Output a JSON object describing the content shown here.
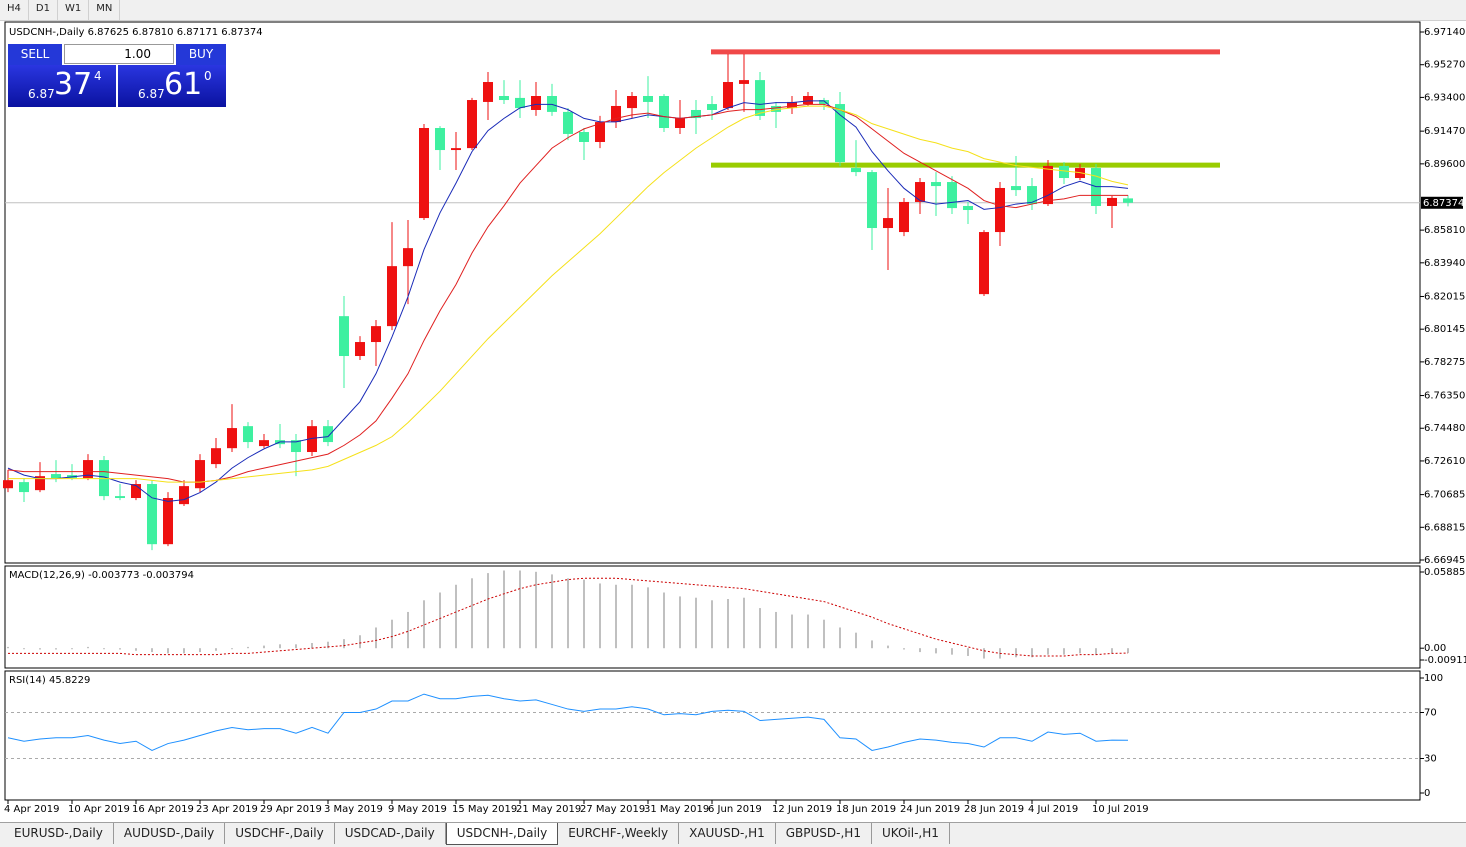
{
  "toolbar": {
    "timeframes": [
      "H4",
      "D1",
      "W1",
      "MN"
    ]
  },
  "trade_panel": {
    "sell": "SELL",
    "buy": "BUY",
    "lot": "1.00",
    "bid": {
      "big": "6.87",
      "pips": "37",
      "frac": "4"
    },
    "ask": {
      "big": "6.87",
      "pips": "61",
      "frac": "0"
    }
  },
  "chart_data": [
    {
      "type": "candlestick",
      "title": "USDCNH-,Daily",
      "header": "6.87625 6.87810 6.87171 6.87374",
      "categories": [
        "4 Apr 2019",
        null,
        null,
        null,
        "10 Apr 2019",
        null,
        null,
        null,
        "16 Apr 2019",
        null,
        null,
        null,
        "23 Apr 2019",
        null,
        null,
        null,
        "29 Apr 2019",
        null,
        null,
        null,
        "3 May 2019",
        null,
        null,
        null,
        "9 May 2019",
        null,
        null,
        null,
        "15 May 2019",
        null,
        null,
        null,
        "21 May 2019",
        null,
        null,
        null,
        "27 May 2019",
        null,
        null,
        null,
        "31 May 2019",
        null,
        null,
        null,
        "6 Jun 2019",
        null,
        null,
        null,
        "12 Jun 2019",
        null,
        null,
        null,
        "18 Jun 2019",
        null,
        null,
        null,
        "24 Jun 2019",
        null,
        null,
        null,
        "28 Jun 2019",
        null,
        null,
        null,
        "4 Jul 2019",
        null,
        null,
        null,
        "10 Jul 2019",
        null,
        null
      ],
      "open": [
        6.7105,
        6.714,
        6.7094,
        6.7186,
        6.718,
        6.7163,
        6.7266,
        6.706,
        6.7049,
        6.7129,
        6.6785,
        6.7014,
        6.7105,
        6.7243,
        6.7334,
        6.746,
        6.7346,
        6.738,
        6.738,
        6.7312,
        6.746,
        6.8089,
        6.7861,
        6.7941,
        6.8032,
        6.8375,
        6.865,
        6.9165,
        6.9039,
        6.905,
        6.9314,
        6.9348,
        6.9337,
        6.9268,
        6.9348,
        6.9257,
        6.9142,
        6.9085,
        6.9199,
        6.9279,
        6.9348,
        6.9348,
        6.9165,
        6.9268,
        6.9302,
        6.9279,
        6.9417,
        6.9439,
        6.9291,
        6.9279,
        6.9302,
        6.9325,
        6.9302,
        6.8936,
        6.8913,
        6.8593,
        6.857,
        6.8742,
        6.8856,
        6.8856,
        6.8719,
        6.8215,
        6.857,
        6.8833,
        6.8833,
        6.873,
        6.8948,
        6.8879,
        6.8936,
        6.8719,
        6.87625
      ],
      "high": [
        6.7209,
        6.7163,
        6.7254,
        6.7266,
        6.7243,
        6.73,
        6.7289,
        6.7129,
        6.7151,
        6.7151,
        6.7083,
        6.7151,
        6.73,
        6.7392,
        6.7586,
        6.7483,
        6.7415,
        6.7472,
        6.7415,
        6.7495,
        6.7495,
        6.8204,
        6.7975,
        6.8067,
        6.8627,
        6.8639,
        6.9188,
        6.9176,
        6.9142,
        6.9337,
        6.9485,
        6.9439,
        6.9439,
        6.9428,
        6.9417,
        6.9279,
        6.9165,
        6.9234,
        6.9382,
        6.9371,
        6.9462,
        6.9359,
        6.9325,
        6.9325,
        6.9348,
        6.9588,
        6.9588,
        6.9485,
        6.9314,
        6.9348,
        6.9371,
        6.9337,
        6.9371,
        6.9096,
        6.8925,
        6.8822,
        6.8765,
        6.8879,
        6.8913,
        6.889,
        6.8742,
        6.8581,
        6.8856,
        6.9005,
        6.8879,
        6.8982,
        6.897,
        6.8959,
        6.8959,
        6.8776,
        6.8781
      ],
      "low": [
        6.7083,
        6.7026,
        6.7083,
        6.714,
        6.7151,
        6.7151,
        6.7037,
        6.7037,
        6.7037,
        6.6751,
        6.6774,
        6.7003,
        6.7083,
        6.722,
        6.7312,
        6.7334,
        6.7334,
        6.7334,
        6.7174,
        6.7289,
        6.7346,
        6.7678,
        6.7838,
        6.7804,
        6.8009,
        6.8158,
        6.8639,
        6.8925,
        6.8925,
        6.9039,
        6.9211,
        6.9302,
        6.9222,
        6.9234,
        6.9234,
        6.9096,
        6.8982,
        6.905,
        6.9165,
        6.9222,
        6.9222,
        6.9142,
        6.9131,
        6.9131,
        6.9211,
        6.9268,
        6.9257,
        6.9211,
        6.9165,
        6.9245,
        6.9291,
        6.9268,
        6.8947,
        6.889,
        6.8467,
        6.8353,
        6.8547,
        6.8673,
        6.8662,
        6.8673,
        6.8616,
        6.8204,
        6.849,
        6.8776,
        6.8696,
        6.8719,
        6.8845,
        6.8867,
        6.8673,
        6.8593,
        6.87171
      ],
      "close": [
        6.7151,
        6.7083,
        6.7174,
        6.7163,
        6.7163,
        6.7266,
        6.706,
        6.7049,
        6.7129,
        6.6785,
        6.7049,
        6.7117,
        6.7266,
        6.7334,
        6.7449,
        6.7369,
        6.738,
        6.7357,
        6.7312,
        6.746,
        6.7369,
        6.7861,
        6.7941,
        6.8032,
        6.8375,
        6.8478,
        6.9165,
        6.9039,
        6.905,
        6.9325,
        6.9428,
        6.9325,
        6.9279,
        6.9348,
        6.9257,
        6.9131,
        6.9085,
        6.9199,
        6.9291,
        6.9348,
        6.9314,
        6.9165,
        6.9222,
        6.9222,
        6.9268,
        6.9428,
        6.9439,
        6.9234,
        6.9257,
        6.9314,
        6.9348,
        6.9302,
        6.897,
        6.8913,
        6.8593,
        6.865,
        6.8742,
        6.8856,
        6.8833,
        6.8707,
        6.8696,
        6.857,
        6.8822,
        6.881,
        6.873,
        6.8948,
        6.8879,
        6.8936,
        6.8719,
        6.8765,
        6.87374
      ],
      "up_color": "#ee1111",
      "down_color": "#3ef0a0",
      "lines": [
        {
          "color": "#1a2bb8",
          "values": [
            6.722,
            6.718,
            6.716,
            6.716,
            6.717,
            6.718,
            6.717,
            6.714,
            6.712,
            6.705,
            6.703,
            6.704,
            6.708,
            6.714,
            6.722,
            6.728,
            6.733,
            6.737,
            6.737,
            6.739,
            6.74,
            6.75,
            6.76,
            6.776,
            6.797,
            6.82,
            6.847,
            6.868,
            6.885,
            6.903,
            6.915,
            6.922,
            6.928,
            6.93,
            6.93,
            6.927,
            6.922,
            6.92,
            6.92,
            6.922,
            6.924,
            6.923,
            6.922,
            6.923,
            6.924,
            6.928,
            6.931,
            6.93,
            6.931,
            6.931,
            6.932,
            6.932,
            6.924,
            6.917,
            6.903,
            6.892,
            6.882,
            6.875,
            6.873,
            6.874,
            6.875,
            6.87,
            6.871,
            6.873,
            6.874,
            6.878,
            6.883,
            6.886,
            6.883,
            6.883,
            6.882
          ]
        },
        {
          "color": "#e02020",
          "values": [
            6.721,
            6.72,
            6.72,
            6.72,
            6.72,
            6.72,
            6.72,
            6.719,
            6.718,
            6.717,
            6.716,
            6.714,
            6.714,
            6.715,
            6.717,
            6.72,
            6.722,
            6.724,
            6.726,
            6.728,
            6.73,
            6.735,
            6.741,
            6.749,
            6.762,
            6.776,
            6.795,
            6.812,
            6.827,
            6.845,
            6.86,
            6.872,
            6.885,
            6.895,
            6.905,
            6.911,
            6.916,
            6.919,
            6.922,
            6.924,
            6.925,
            6.923,
            6.922,
            6.923,
            6.924,
            6.926,
            6.927,
            6.927,
            6.928,
            6.929,
            6.93,
            6.93,
            6.927,
            6.923,
            6.916,
            6.909,
            6.902,
            6.897,
            6.892,
            6.887,
            6.882,
            6.875,
            6.872,
            6.871,
            6.873,
            6.875,
            6.876,
            6.878,
            6.878,
            6.878,
            6.878
          ]
        },
        {
          "color": "#f5e11a",
          "values": [
            6.716,
            6.716,
            6.716,
            6.716,
            6.716,
            6.716,
            6.716,
            6.716,
            6.716,
            6.715,
            6.714,
            6.714,
            6.714,
            6.715,
            6.716,
            6.717,
            6.718,
            6.719,
            6.72,
            6.721,
            6.723,
            6.727,
            6.731,
            6.735,
            6.74,
            6.748,
            6.757,
            6.766,
            6.776,
            6.786,
            6.796,
            6.805,
            6.814,
            6.823,
            6.832,
            6.84,
            6.848,
            6.856,
            6.865,
            6.874,
            6.883,
            6.891,
            6.898,
            6.905,
            6.911,
            6.917,
            6.922,
            6.925,
            6.927,
            6.928,
            6.929,
            6.929,
            6.927,
            6.924,
            6.919,
            6.916,
            6.913,
            6.91,
            6.908,
            6.905,
            6.903,
            6.899,
            6.897,
            6.895,
            6.894,
            6.893,
            6.892,
            6.891,
            6.889,
            6.886,
            6.884
          ]
        }
      ],
      "levels": [
        {
          "value": 6.96,
          "color": "#f04848"
        },
        {
          "value": 6.8953,
          "color": "#99cc00"
        }
      ],
      "last_price": 6.87374,
      "ylim": [
        6.66945,
        6.9714
      ],
      "yticks": [
        {
          "value": 6.9714,
          "label": "6.97140"
        },
        {
          "value": 6.9527,
          "label": "6.95270"
        },
        {
          "value": 6.934,
          "label": "6.93400"
        },
        {
          "value": 6.9147,
          "label": "6.91470"
        },
        {
          "value": 6.896,
          "label": "6.89600"
        },
        {
          "value": 6.8581,
          "label": "6.85810"
        },
        {
          "value": 6.8394,
          "label": "6.83940"
        },
        {
          "value": 6.82015,
          "label": "6.82015"
        },
        {
          "value": 6.80145,
          "label": "6.80145"
        },
        {
          "value": 6.78275,
          "label": "6.78275"
        },
        {
          "value": 6.7635,
          "label": "6.76350"
        },
        {
          "value": 6.7448,
          "label": "6.74480"
        },
        {
          "value": 6.7261,
          "label": "6.72610"
        },
        {
          "value": 6.70685,
          "label": "6.70685"
        },
        {
          "value": 6.68815,
          "label": "6.68815"
        },
        {
          "value": 6.66945,
          "label": "6.66945"
        }
      ]
    },
    {
      "type": "macd",
      "title": "MACD(12,26,9) -0.003773 -0.003794",
      "values": [
        0.001,
        0.0,
        -0.001,
        -0.001,
        0.0,
        0.001,
        0.0,
        -0.001,
        -0.002,
        -0.003,
        -0.004,
        -0.004,
        -0.003,
        -0.002,
        0.0,
        0.001,
        0.002,
        0.003,
        0.003,
        0.004,
        0.005,
        0.007,
        0.01,
        0.016,
        0.022,
        0.028,
        0.037,
        0.043,
        0.049,
        0.054,
        0.058,
        0.06,
        0.06,
        0.059,
        0.057,
        0.054,
        0.053,
        0.05,
        0.049,
        0.049,
        0.047,
        0.043,
        0.04,
        0.039,
        0.037,
        0.038,
        0.039,
        0.031,
        0.028,
        0.026,
        0.026,
        0.022,
        0.016,
        0.012,
        0.006,
        0.002,
        -0.001,
        -0.003,
        -0.004,
        -0.005,
        -0.006,
        -0.008,
        -0.008,
        -0.007,
        -0.007,
        -0.005,
        -0.005,
        -0.004,
        -0.005,
        -0.004,
        -0.003773
      ],
      "signal": [
        -0.004,
        -0.004,
        -0.004,
        -0.004,
        -0.004,
        -0.004,
        -0.004,
        -0.004,
        -0.005,
        -0.005,
        -0.005,
        -0.005,
        -0.005,
        -0.005,
        -0.004,
        -0.004,
        -0.003,
        -0.002,
        -0.001,
        0.0,
        0.001,
        0.002,
        0.004,
        0.006,
        0.009,
        0.013,
        0.018,
        0.023,
        0.028,
        0.033,
        0.038,
        0.042,
        0.046,
        0.049,
        0.051,
        0.053,
        0.054,
        0.054,
        0.054,
        0.053,
        0.052,
        0.051,
        0.05,
        0.049,
        0.048,
        0.047,
        0.046,
        0.044,
        0.042,
        0.04,
        0.038,
        0.036,
        0.032,
        0.028,
        0.024,
        0.019,
        0.015,
        0.011,
        0.007,
        0.004,
        0.001,
        -0.002,
        -0.004,
        -0.005,
        -0.006,
        -0.006,
        -0.006,
        -0.005,
        -0.005,
        -0.004,
        -0.003794
      ],
      "color": "#c0c0c0",
      "signal_color": "#cc0000",
      "ylim": [
        -0.009116,
        0.058851
      ],
      "yticks": [
        0.058851,
        {
          "value": 0,
          "label": "0.00"
        },
        -0.009116
      ]
    },
    {
      "type": "line",
      "title": "RSI(14) 45.8229",
      "values": [
        48,
        45,
        47,
        48,
        48,
        50,
        46,
        43,
        45,
        37,
        43,
        46,
        50,
        54,
        57,
        55,
        56,
        56,
        52,
        57,
        52,
        70,
        70,
        73,
        80,
        80,
        86,
        82,
        82,
        84,
        85,
        82,
        80,
        81,
        77,
        73,
        71,
        73,
        73,
        75,
        73,
        68,
        69,
        68,
        71,
        72,
        71,
        63,
        64,
        65,
        66,
        64,
        48,
        47,
        37,
        40,
        44,
        47,
        46,
        44,
        43,
        40,
        48,
        48,
        45,
        53,
        51,
        52,
        45,
        46,
        45.8229
      ],
      "color": "#1e90ff",
      "ylim": [
        0,
        100
      ],
      "yticks": [
        100,
        70,
        30,
        0
      ],
      "levels": [
        70,
        30
      ]
    }
  ],
  "tabs": [
    "EURUSD-,Daily",
    "AUDUSD-,Daily",
    "USDCHF-,Daily",
    "USDCAD-,Daily",
    "USDCNH-,Daily",
    "EURCHF-,Weekly",
    "XAUUSD-,H1",
    "GBPUSD-,H1",
    "UKOil-,H1"
  ],
  "active_tab": 4
}
